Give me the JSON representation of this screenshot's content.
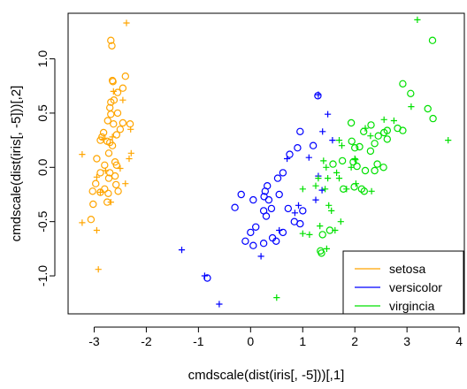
{
  "chart_data": {
    "type": "scatter",
    "xlabel": "cmdscale(dist(iris[, -5]))[,1]",
    "ylabel": "cmdscale(dist(iris[, -5]))[,2]",
    "xlim": [
      -3.5,
      4.1
    ],
    "ylim": [
      -1.35,
      1.42
    ],
    "x_ticks": [
      -3,
      -2,
      -1,
      0,
      1,
      2,
      3,
      4
    ],
    "y_ticks": [
      -1.0,
      -0.5,
      0.0,
      0.5,
      1.0
    ],
    "x_tick_labels": [
      "-3",
      "-2",
      "-1",
      "0",
      "1",
      "2",
      "3",
      "4"
    ],
    "y_tick_labels": [
      "-1.0",
      "-0.5",
      "0.0",
      "0.5",
      "1.0"
    ],
    "legend_position": "bottom-right",
    "series": [
      {
        "name": "setosa",
        "color": "#FFA500",
        "circles": [
          [
            -2.68,
            1.17
          ],
          [
            -2.66,
            1.12
          ],
          [
            -2.65,
            0.8
          ],
          [
            -2.64,
            0.79
          ],
          [
            -2.4,
            0.84
          ],
          [
            -2.45,
            0.73
          ],
          [
            -2.55,
            0.69
          ],
          [
            -2.62,
            0.62
          ],
          [
            -2.68,
            0.6
          ],
          [
            -2.7,
            0.55
          ],
          [
            -2.55,
            0.5
          ],
          [
            -2.68,
            0.49
          ],
          [
            -2.74,
            0.43
          ],
          [
            -2.63,
            0.4
          ],
          [
            -2.45,
            0.41
          ],
          [
            -2.5,
            0.35
          ],
          [
            -2.31,
            0.4
          ],
          [
            -2.57,
            0.3
          ],
          [
            -2.82,
            0.32
          ],
          [
            -2.85,
            0.28
          ],
          [
            -2.88,
            0.25
          ],
          [
            -2.75,
            0.24
          ],
          [
            -2.7,
            0.23
          ],
          [
            -2.65,
            0.2
          ],
          [
            -2.72,
            0.13
          ],
          [
            -2.95,
            0.08
          ],
          [
            -2.6,
            0.05
          ],
          [
            -2.8,
            0.02
          ],
          [
            -2.57,
            0.02
          ],
          [
            -2.88,
            -0.05
          ],
          [
            -2.7,
            -0.05
          ],
          [
            -2.6,
            -0.08
          ],
          [
            -2.72,
            -0.1
          ],
          [
            -2.58,
            -0.16
          ],
          [
            -2.97,
            -0.15
          ],
          [
            -2.8,
            -0.2
          ],
          [
            -2.88,
            -0.23
          ],
          [
            -2.73,
            -0.24
          ],
          [
            -2.54,
            -0.22
          ],
          [
            -3.03,
            -0.22
          ],
          [
            -2.75,
            -0.32
          ],
          [
            -3.02,
            -0.34
          ],
          [
            -3.06,
            -0.48
          ]
        ],
        "pluses": [
          [
            -2.38,
            1.33
          ],
          [
            -3.23,
            0.12
          ],
          [
            -2.3,
            0.35
          ],
          [
            -2.95,
            -0.09
          ],
          [
            -2.78,
            -0.03
          ],
          [
            -2.88,
            -0.23
          ],
          [
            -2.45,
            0.62
          ],
          [
            -2.29,
            0.13
          ],
          [
            -2.63,
            0.7
          ],
          [
            -3.23,
            -0.51
          ],
          [
            -2.95,
            -0.58
          ],
          [
            -2.92,
            -0.94
          ],
          [
            -2.68,
            -0.32
          ],
          [
            -2.5,
            -0.01
          ],
          [
            -2.4,
            -0.15
          ],
          [
            -2.33,
            0.08
          ],
          [
            -2.65,
            0.28
          ],
          [
            -2.82,
            0.26
          ]
        ]
      },
      {
        "name": "versicolor",
        "color": "#0000FF",
        "circles": [
          [
            1.29,
            0.66
          ],
          [
            0.95,
            0.33
          ],
          [
            1.2,
            0.2
          ],
          [
            0.9,
            0.18
          ],
          [
            0.75,
            0.12
          ],
          [
            0.62,
            -0.05
          ],
          [
            0.52,
            -0.1
          ],
          [
            0.32,
            -0.17
          ],
          [
            -0.18,
            -0.25
          ],
          [
            0.28,
            -0.22
          ],
          [
            0.26,
            -0.27
          ],
          [
            0.55,
            -0.25
          ],
          [
            0.05,
            -0.3
          ],
          [
            0.35,
            -0.3
          ],
          [
            -0.3,
            -0.37
          ],
          [
            0.25,
            -0.4
          ],
          [
            0.4,
            -0.38
          ],
          [
            0.72,
            -0.38
          ],
          [
            1.0,
            -0.4
          ],
          [
            0.3,
            -0.45
          ],
          [
            0.84,
            -0.5
          ],
          [
            0.95,
            -0.52
          ],
          [
            0.1,
            -0.55
          ],
          [
            0.0,
            -0.6
          ],
          [
            0.62,
            -0.6
          ],
          [
            0.42,
            -0.65
          ],
          [
            -0.1,
            -0.68
          ],
          [
            0.05,
            -0.72
          ],
          [
            0.25,
            -0.7
          ],
          [
            0.49,
            -0.68
          ],
          [
            -0.83,
            -1.02
          ]
        ],
        "pluses": [
          [
            1.3,
            0.67
          ],
          [
            1.48,
            0.49
          ],
          [
            1.38,
            0.33
          ],
          [
            1.57,
            0.25
          ],
          [
            0.7,
            0.08
          ],
          [
            1.12,
            0.09
          ],
          [
            1.3,
            -0.08
          ],
          [
            1.37,
            -0.21
          ],
          [
            1.25,
            -0.3
          ],
          [
            0.92,
            -0.35
          ],
          [
            0.85,
            -0.42
          ],
          [
            0.55,
            -0.58
          ],
          [
            0.2,
            -0.82
          ],
          [
            -1.32,
            -0.76
          ],
          [
            -0.88,
            -1.0
          ],
          [
            -0.6,
            -1.26
          ]
        ]
      },
      {
        "name": "virgincia",
        "color": "#00E000",
        "circles": [
          [
            3.49,
            1.17
          ],
          [
            2.92,
            0.77
          ],
          [
            3.07,
            0.68
          ],
          [
            3.4,
            0.54
          ],
          [
            3.5,
            0.45
          ],
          [
            1.93,
            0.41
          ],
          [
            2.31,
            0.39
          ],
          [
            2.62,
            0.34
          ],
          [
            2.92,
            0.34
          ],
          [
            2.82,
            0.36
          ],
          [
            2.56,
            0.32
          ],
          [
            2.17,
            0.33
          ],
          [
            2.45,
            0.29
          ],
          [
            1.94,
            0.24
          ],
          [
            2.62,
            0.26
          ],
          [
            2.38,
            0.22
          ],
          [
            2.09,
            0.19
          ],
          [
            2.0,
            0.18
          ],
          [
            2.3,
            0.15
          ],
          [
            1.97,
            0.05
          ],
          [
            2.43,
            0.03
          ],
          [
            1.58,
            0.03
          ],
          [
            2.04,
            0.01
          ],
          [
            1.76,
            0.06
          ],
          [
            2.2,
            -0.03
          ],
          [
            2.38,
            -0.03
          ],
          [
            2.55,
            0.0
          ],
          [
            1.78,
            -0.2
          ],
          [
            1.99,
            -0.18
          ],
          [
            2.13,
            -0.2
          ],
          [
            2.18,
            -0.22
          ],
          [
            1.52,
            -0.58
          ],
          [
            1.38,
            -0.62
          ],
          [
            1.34,
            -0.77
          ],
          [
            1.36,
            -0.79
          ]
        ],
        "pluses": [
          [
            3.2,
            1.36
          ],
          [
            3.79,
            0.25
          ],
          [
            3.08,
            0.56
          ],
          [
            2.56,
            0.44
          ],
          [
            2.3,
            0.29
          ],
          [
            2.0,
            0.08
          ],
          [
            1.75,
            0.2
          ],
          [
            2.01,
            0.07
          ],
          [
            1.93,
            0.0
          ],
          [
            1.45,
            0.0
          ],
          [
            1.3,
            -0.1
          ],
          [
            1.48,
            -0.1
          ],
          [
            1.7,
            -0.1
          ],
          [
            2.02,
            -0.15
          ],
          [
            2.32,
            -0.22
          ],
          [
            1.43,
            -0.2
          ],
          [
            1.25,
            -0.17
          ],
          [
            1.0,
            -0.2
          ],
          [
            1.5,
            -0.35
          ],
          [
            1.73,
            -0.5
          ],
          [
            1.55,
            -0.4
          ],
          [
            1.33,
            -0.54
          ],
          [
            1.62,
            -0.58
          ],
          [
            1.13,
            -0.62
          ],
          [
            1.0,
            -0.61
          ],
          [
            1.46,
            -0.75
          ],
          [
            0.5,
            -1.2
          ],
          [
            1.65,
            -0.05
          ],
          [
            1.4,
            0.06
          ],
          [
            1.7,
            0.25
          ],
          [
            2.75,
            0.43
          ],
          [
            2.2,
            0.36
          ],
          [
            1.84,
            -0.2
          ]
        ]
      }
    ]
  }
}
